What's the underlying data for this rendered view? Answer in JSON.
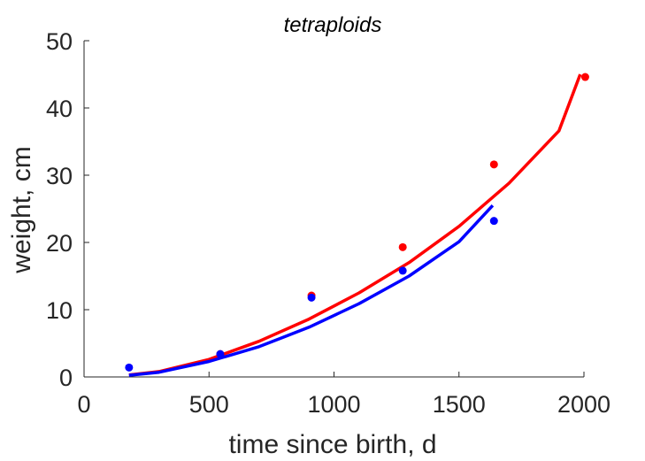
{
  "chart_data": {
    "type": "scatter",
    "title": "tetraploids",
    "xlabel": "time since birth, d",
    "ylabel": "weight, cm",
    "xlim": [
      0,
      2000
    ],
    "ylim": [
      0,
      50
    ],
    "xticks": [
      0,
      500,
      1000,
      1500,
      2000
    ],
    "yticks": [
      0,
      10,
      20,
      30,
      40,
      50
    ],
    "xtick_labels": [
      "0",
      "500",
      "1000",
      "1500",
      "2000"
    ],
    "ytick_labels": [
      "0",
      "10",
      "20",
      "30",
      "40",
      "50"
    ],
    "grid": false,
    "legend": "none",
    "series": [
      {
        "color": "#ff0000",
        "kind": "points",
        "x": [
          545,
          910,
          1275,
          1640,
          2005
        ],
        "y": [
          3.4,
          12.1,
          19.3,
          31.6,
          44.6
        ]
      },
      {
        "color": "#ff0000",
        "kind": "fit-curve",
        "x": [
          180,
          300,
          500,
          700,
          900,
          1100,
          1300,
          1500,
          1700,
          1900,
          1985
        ],
        "y": [
          0.3,
          0.8,
          2.6,
          5.3,
          8.6,
          12.5,
          17.0,
          22.4,
          28.8,
          36.6,
          45.0
        ]
      },
      {
        "color": "#0000ff",
        "kind": "points",
        "x": [
          180,
          545,
          910,
          1275,
          1640
        ],
        "y": [
          1.4,
          3.4,
          11.8,
          15.8,
          23.2
        ]
      },
      {
        "color": "#0000ff",
        "kind": "fit-curve",
        "x": [
          180,
          300,
          500,
          700,
          900,
          1100,
          1300,
          1500,
          1635
        ],
        "y": [
          0.25,
          0.7,
          2.3,
          4.5,
          7.4,
          10.9,
          15.0,
          20.1,
          25.5
        ]
      }
    ]
  }
}
